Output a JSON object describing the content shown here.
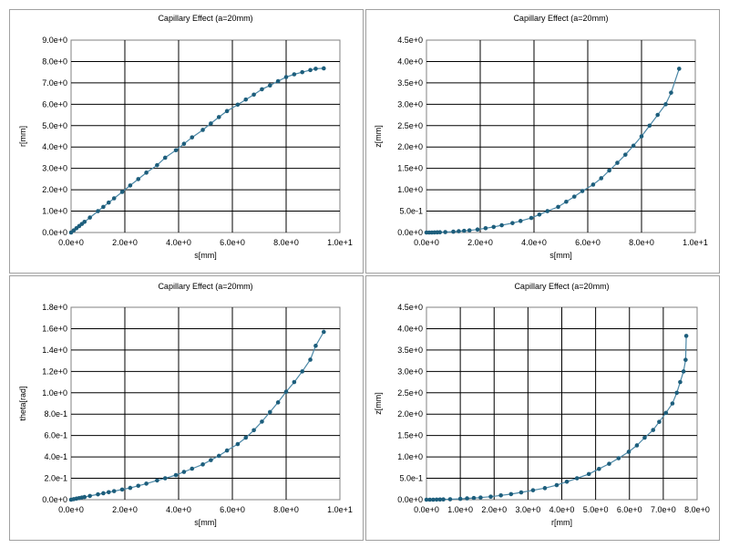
{
  "chart_data": [
    {
      "type": "line",
      "title": "Capillary Effect (a=20mm)",
      "xlabel": "s[mm]",
      "ylabel": "r[mm]",
      "xlim": [
        0,
        10
      ],
      "ylim": [
        0,
        9
      ],
      "xticks": [
        0,
        2,
        4,
        6,
        8,
        10
      ],
      "xtick_labels": [
        "0.0e+0",
        "2.0e+0",
        "4.0e+0",
        "6.0e+0",
        "8.0e+0",
        "1.0e+1"
      ],
      "yticks": [
        0,
        1,
        2,
        3,
        4,
        5,
        6,
        7,
        8,
        9
      ],
      "ytick_labels": [
        "0.0e+0",
        "1.0e+0",
        "2.0e+0",
        "3.0e+0",
        "4.0e+0",
        "5.0e+0",
        "6.0e+0",
        "7.0e+0",
        "8.0e+0",
        "9.0e+0"
      ],
      "grid": true,
      "x": [
        0,
        0.1,
        0.2,
        0.3,
        0.4,
        0.5,
        0.7,
        1.0,
        1.2,
        1.4,
        1.6,
        1.9,
        2.2,
        2.5,
        2.8,
        3.2,
        3.5,
        3.9,
        4.2,
        4.5,
        4.9,
        5.2,
        5.5,
        5.8,
        6.2,
        6.5,
        6.8,
        7.1,
        7.4,
        7.7,
        8.0,
        8.3,
        8.6,
        8.9,
        9.1,
        9.4
      ],
      "y": [
        0,
        0.1,
        0.2,
        0.3,
        0.4,
        0.5,
        0.7,
        1.0,
        1.2,
        1.4,
        1.6,
        1.9,
        2.2,
        2.5,
        2.8,
        3.15,
        3.5,
        3.85,
        4.15,
        4.45,
        4.8,
        5.1,
        5.4,
        5.68,
        5.98,
        6.22,
        6.45,
        6.7,
        6.88,
        7.08,
        7.27,
        7.4,
        7.5,
        7.6,
        7.66,
        7.68
      ]
    },
    {
      "type": "line",
      "title": "Capillary Effect (a=20mm)",
      "xlabel": "s[mm]",
      "ylabel": "z[mm]",
      "xlim": [
        0,
        10
      ],
      "ylim": [
        0,
        4.5
      ],
      "xticks": [
        0,
        2,
        4,
        6,
        8,
        10
      ],
      "xtick_labels": [
        "0.0e+0",
        "2.0e+0",
        "4.0e+0",
        "6.0e+0",
        "8.0e+0",
        "1.0e+1"
      ],
      "yticks": [
        0,
        0.5,
        1,
        1.5,
        2,
        2.5,
        3,
        3.5,
        4,
        4.5
      ],
      "ytick_labels": [
        "0.0e+0",
        "5.0e-1",
        "1.0e+0",
        "1.5e+0",
        "2.0e+0",
        "2.5e+0",
        "3.0e+0",
        "3.5e+0",
        "4.0e+0",
        "4.5e+0"
      ],
      "grid": true,
      "x": [
        0,
        0.1,
        0.2,
        0.3,
        0.4,
        0.5,
        0.7,
        1.0,
        1.2,
        1.4,
        1.6,
        1.9,
        2.2,
        2.5,
        2.8,
        3.2,
        3.5,
        3.9,
        4.2,
        4.5,
        4.9,
        5.2,
        5.5,
        5.8,
        6.2,
        6.5,
        6.8,
        7.1,
        7.4,
        7.7,
        8.0,
        8.3,
        8.6,
        8.9,
        9.1,
        9.4
      ],
      "y": [
        0,
        0,
        0,
        0.002,
        0.004,
        0.006,
        0.01,
        0.02,
        0.03,
        0.04,
        0.05,
        0.07,
        0.1,
        0.13,
        0.17,
        0.22,
        0.27,
        0.34,
        0.42,
        0.5,
        0.6,
        0.72,
        0.84,
        0.97,
        1.12,
        1.27,
        1.45,
        1.63,
        1.82,
        2.03,
        2.25,
        2.5,
        2.75,
        3.0,
        3.27,
        3.83
      ]
    },
    {
      "type": "line",
      "title": "Capillary Effect (a=20mm)",
      "xlabel": "s[mm]",
      "ylabel": "theta[rad]",
      "xlim": [
        0,
        10
      ],
      "ylim": [
        0,
        1.8
      ],
      "xticks": [
        0,
        2,
        4,
        6,
        8,
        10
      ],
      "xtick_labels": [
        "0.0e+0",
        "2.0e+0",
        "4.0e+0",
        "6.0e+0",
        "8.0e+0",
        "1.0e+1"
      ],
      "yticks": [
        0,
        0.2,
        0.4,
        0.6,
        0.8,
        1.0,
        1.2,
        1.4,
        1.6,
        1.8
      ],
      "ytick_labels": [
        "0.0e+0",
        "2.0e-1",
        "4.0e-1",
        "6.0e-1",
        "8.0e-1",
        "1.0e+0",
        "1.2e+0",
        "1.4e+0",
        "1.6e+0",
        "1.8e+0"
      ],
      "grid": true,
      "x": [
        0,
        0.1,
        0.2,
        0.3,
        0.4,
        0.5,
        0.7,
        1.0,
        1.2,
        1.4,
        1.6,
        1.9,
        2.2,
        2.5,
        2.8,
        3.2,
        3.5,
        3.9,
        4.2,
        4.5,
        4.9,
        5.2,
        5.5,
        5.8,
        6.2,
        6.5,
        6.8,
        7.1,
        7.4,
        7.7,
        8.0,
        8.3,
        8.6,
        8.9,
        9.1,
        9.4
      ],
      "y": [
        0,
        0.005,
        0.01,
        0.015,
        0.02,
        0.025,
        0.035,
        0.05,
        0.06,
        0.07,
        0.08,
        0.095,
        0.11,
        0.13,
        0.15,
        0.18,
        0.2,
        0.23,
        0.26,
        0.29,
        0.33,
        0.37,
        0.41,
        0.46,
        0.52,
        0.58,
        0.65,
        0.73,
        0.82,
        0.91,
        1.01,
        1.1,
        1.2,
        1.31,
        1.44,
        1.57
      ]
    },
    {
      "type": "line",
      "title": "Capillary Effect (a=20mm)",
      "xlabel": "r[mm]",
      "ylabel": "z[mm]",
      "xlim": [
        0,
        8
      ],
      "ylim": [
        0,
        4.5
      ],
      "xticks": [
        0,
        1,
        2,
        3,
        4,
        5,
        6,
        7,
        8
      ],
      "xtick_labels": [
        "0.0e+0",
        "1.0e+0",
        "2.0e+0",
        "3.0e+0",
        "4.0e+0",
        "5.0e+0",
        "6.0e+0",
        "7.0e+0",
        "8.0e+0"
      ],
      "yticks": [
        0,
        0.5,
        1,
        1.5,
        2,
        2.5,
        3,
        3.5,
        4,
        4.5
      ],
      "ytick_labels": [
        "0.0e+0",
        "5.0e-1",
        "1.0e+0",
        "1.5e+0",
        "2.0e+0",
        "2.5e+0",
        "3.0e+0",
        "3.5e+0",
        "4.0e+0",
        "4.5e+0"
      ],
      "grid": true,
      "x": [
        0,
        0.1,
        0.2,
        0.3,
        0.4,
        0.5,
        0.7,
        1.0,
        1.2,
        1.4,
        1.6,
        1.9,
        2.2,
        2.5,
        2.8,
        3.15,
        3.5,
        3.85,
        4.15,
        4.45,
        4.8,
        5.1,
        5.4,
        5.68,
        5.98,
        6.22,
        6.45,
        6.7,
        6.88,
        7.08,
        7.27,
        7.4,
        7.5,
        7.6,
        7.66,
        7.68
      ],
      "y": [
        0,
        0,
        0,
        0.002,
        0.004,
        0.006,
        0.01,
        0.02,
        0.03,
        0.04,
        0.05,
        0.07,
        0.1,
        0.13,
        0.17,
        0.22,
        0.27,
        0.34,
        0.42,
        0.5,
        0.6,
        0.72,
        0.84,
        0.97,
        1.12,
        1.27,
        1.45,
        1.63,
        1.82,
        2.03,
        2.25,
        2.5,
        2.75,
        3.0,
        3.27,
        3.83
      ]
    }
  ],
  "colors": {
    "line": "#4a87a6",
    "marker": "#1d5e7c",
    "grid": "#000000",
    "border": "#808080"
  }
}
